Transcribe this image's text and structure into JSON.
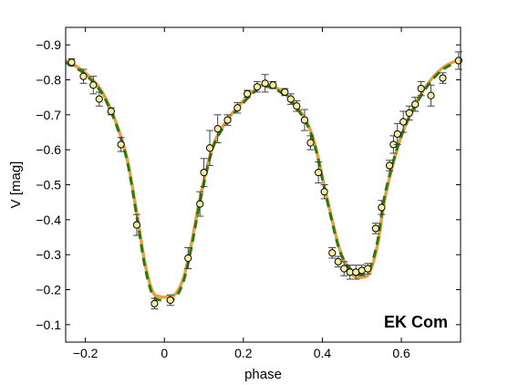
{
  "chart_data": {
    "type": "scatter",
    "xlabel": "phase",
    "ylabel": "V [mag]",
    "annotation": "EK Com",
    "xlim": [
      -0.25,
      0.75
    ],
    "ylim": [
      -0.95,
      -0.05
    ],
    "y_inverted": true,
    "x_ticks": [
      -0.2,
      0,
      0.2,
      0.4,
      0.6
    ],
    "x_tick_labels": [
      "−0.2",
      "0",
      "0.2",
      "0.4",
      "0.6"
    ],
    "y_ticks": [
      -0.9,
      -0.8,
      -0.7,
      -0.6,
      -0.5,
      -0.4,
      -0.3,
      -0.2,
      -0.1
    ],
    "y_tick_labels": [
      "−0.9",
      "−0.8",
      "−0.7",
      "−0.6",
      "−0.5",
      "−0.4",
      "−0.3",
      "−0.2",
      "−0.1"
    ],
    "grid": false,
    "observations": {
      "marker_fill": "#f5f0a0",
      "marker_edge": "#000000",
      "x": [
        -0.235,
        -0.205,
        -0.18,
        -0.165,
        -0.135,
        -0.11,
        -0.07,
        -0.025,
        0.015,
        0.06,
        0.09,
        0.1,
        0.115,
        0.135,
        0.16,
        0.185,
        0.21,
        0.235,
        0.255,
        0.275,
        0.305,
        0.32,
        0.335,
        0.355,
        0.37,
        0.39,
        0.405,
        0.425,
        0.44,
        0.455,
        0.47,
        0.485,
        0.5,
        0.515,
        0.535,
        0.55,
        0.57,
        0.58,
        0.59,
        0.605,
        0.62,
        0.635,
        0.65,
        0.675,
        0.705,
        0.745
      ],
      "y": [
        -0.85,
        -0.81,
        -0.785,
        -0.745,
        -0.71,
        -0.615,
        -0.385,
        -0.16,
        -0.17,
        -0.29,
        -0.445,
        -0.535,
        -0.605,
        -0.66,
        -0.685,
        -0.72,
        -0.76,
        -0.78,
        -0.79,
        -0.785,
        -0.765,
        -0.745,
        -0.725,
        -0.685,
        -0.62,
        -0.535,
        -0.48,
        -0.305,
        -0.28,
        -0.26,
        -0.25,
        -0.25,
        -0.255,
        -0.26,
        -0.375,
        -0.435,
        -0.555,
        -0.615,
        -0.645,
        -0.68,
        -0.705,
        -0.73,
        -0.775,
        -0.755,
        -0.805,
        -0.855
      ],
      "yerr": [
        0.01,
        0.02,
        0.025,
        0.02,
        0.01,
        0.02,
        0.03,
        0.015,
        0.015,
        0.03,
        0.035,
        0.04,
        0.05,
        0.04,
        0.015,
        0.015,
        0.01,
        0.015,
        0.025,
        0.01,
        0.01,
        0.015,
        0.015,
        0.03,
        0.02,
        0.03,
        0.02,
        0.015,
        0.015,
        0.02,
        0.02,
        0.02,
        0.015,
        0.015,
        0.015,
        0.02,
        0.015,
        0.025,
        0.03,
        0.03,
        0.02,
        0.02,
        0.02,
        0.03,
        0.015,
        0.025
      ]
    },
    "model_fit_1": {
      "color": "#e8a040",
      "style": "solid",
      "x": [
        -0.25,
        -0.2,
        -0.15,
        -0.1,
        -0.07,
        -0.05,
        -0.03,
        -0.01,
        0.01,
        0.03,
        0.05,
        0.07,
        0.09,
        0.12,
        0.15,
        0.2,
        0.25,
        0.3,
        0.35,
        0.38,
        0.41,
        0.44,
        0.46,
        0.48,
        0.5,
        0.52,
        0.54,
        0.56,
        0.6,
        0.65,
        0.7,
        0.75
      ],
      "y": [
        -0.855,
        -0.82,
        -0.75,
        -0.6,
        -0.42,
        -0.28,
        -0.195,
        -0.18,
        -0.18,
        -0.19,
        -0.24,
        -0.34,
        -0.46,
        -0.6,
        -0.67,
        -0.74,
        -0.785,
        -0.765,
        -0.7,
        -0.62,
        -0.47,
        -0.33,
        -0.27,
        -0.24,
        -0.235,
        -0.25,
        -0.33,
        -0.47,
        -0.64,
        -0.76,
        -0.83,
        -0.86
      ]
    },
    "model_fit_2": {
      "color": "#2a7a10",
      "style": "dashed",
      "x": [
        -0.25,
        -0.2,
        -0.15,
        -0.1,
        -0.07,
        -0.05,
        -0.03,
        -0.01,
        0.01,
        0.03,
        0.05,
        0.07,
        0.09,
        0.12,
        0.15,
        0.2,
        0.25,
        0.3,
        0.35,
        0.38,
        0.41,
        0.44,
        0.46,
        0.48,
        0.5,
        0.52,
        0.54,
        0.56,
        0.6,
        0.65,
        0.7,
        0.75
      ],
      "y": [
        -0.85,
        -0.815,
        -0.745,
        -0.595,
        -0.41,
        -0.27,
        -0.185,
        -0.17,
        -0.17,
        -0.18,
        -0.23,
        -0.33,
        -0.45,
        -0.595,
        -0.665,
        -0.735,
        -0.78,
        -0.76,
        -0.695,
        -0.615,
        -0.465,
        -0.325,
        -0.275,
        -0.25,
        -0.245,
        -0.26,
        -0.34,
        -0.48,
        -0.64,
        -0.755,
        -0.825,
        -0.855
      ]
    }
  }
}
